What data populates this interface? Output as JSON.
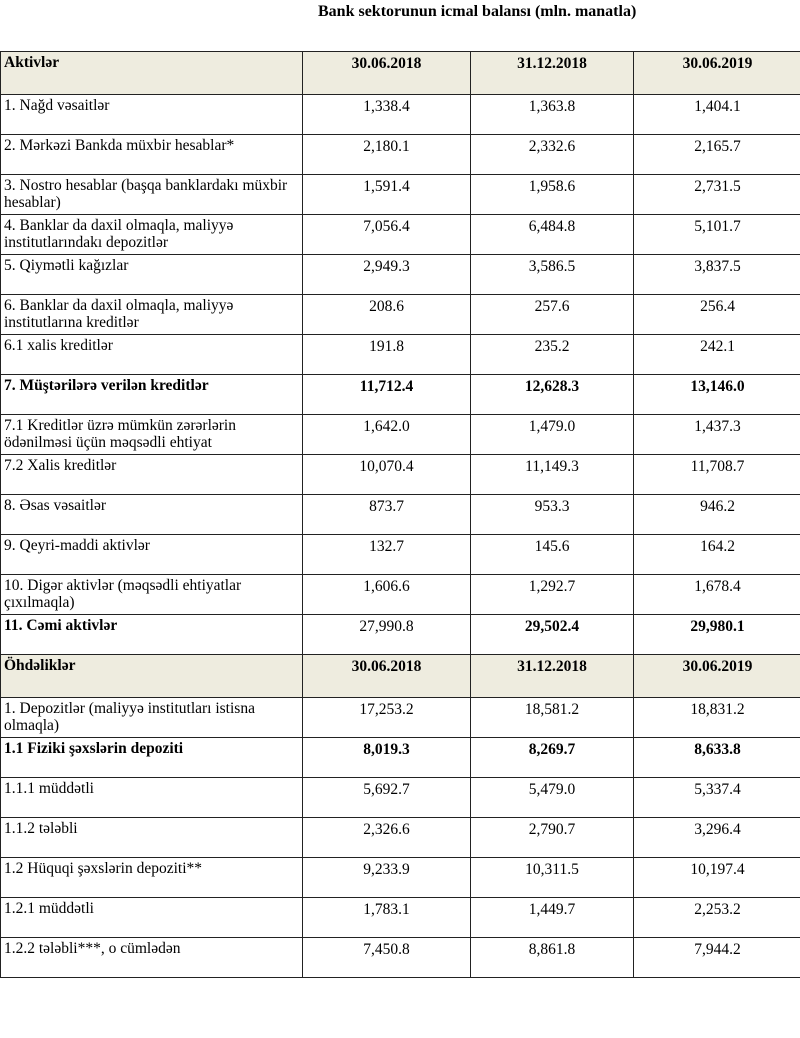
{
  "title": "Bank sektorunun icmal balansı  (mln. manatla)",
  "rows": [
    {
      "type": "head",
      "cells": [
        "Aktivlər",
        "30.06.2018",
        "31.12.2018",
        "30.06.2019"
      ]
    },
    {
      "cells": [
        "1. Nağd vəsaitlər",
        "1,338.4",
        "1,363.8",
        "1,404.1"
      ]
    },
    {
      "cells": [
        "2. Mərkəzi Bankda müxbir hesablar*",
        "2,180.1",
        "2,332.6",
        "2,165.7"
      ]
    },
    {
      "cells": [
        "3. Nostro hesablar (başqa banklardakı müxbir hesablar)",
        "1,591.4",
        "1,958.6",
        "2,731.5"
      ]
    },
    {
      "cells": [
        "4. Banklar da daxil olmaqla, maliyyə institutlarındakı depozitlər",
        "7,056.4",
        "6,484.8",
        "5,101.7"
      ]
    },
    {
      "cells": [
        "5. Qiymətli kağızlar",
        "2,949.3",
        "3,586.5",
        "3,837.5"
      ]
    },
    {
      "cells": [
        "6. Banklar da daxil olmaqla, maliyyə institutlarına kreditlər",
        "208.6",
        "257.6",
        "256.4"
      ]
    },
    {
      "cells": [
        "6.1 xalis kreditlər",
        "191.8",
        "235.2",
        "242.1"
      ]
    },
    {
      "cells": [
        "7. Müştərilərə verilən kreditlər",
        "11,712.4",
        "12,628.3",
        "13,146.0"
      ],
      "bold": [
        true,
        true,
        true,
        true
      ]
    },
    {
      "cells": [
        "7.1 Kreditlər üzrə mümkün zərərlərin ödənilməsi üçün məqsədli ehtiyat",
        "1,642.0",
        "1,479.0",
        "1,437.3"
      ]
    },
    {
      "cells": [
        "7.2 Xalis kreditlər",
        "10,070.4",
        "11,149.3",
        "11,708.7"
      ]
    },
    {
      "cells": [
        "8. Əsas vəsaitlər",
        "873.7",
        "953.3",
        "946.2"
      ]
    },
    {
      "cells": [
        "9. Qeyri-maddi aktivlər",
        "132.7",
        "145.6",
        "164.2"
      ]
    },
    {
      "cells": [
        "10. Digər aktivlər (məqsədli ehtiyatlar çıxılmaqla)",
        "1,606.6",
        "1,292.7",
        "1,678.4"
      ]
    },
    {
      "cells": [
        "11. Cəmi aktivlər",
        "27,990.8",
        "29,502.4",
        "29,980.1"
      ],
      "bold": [
        true,
        false,
        true,
        true
      ]
    },
    {
      "type": "head",
      "cells": [
        "Öhdəliklər",
        "30.06.2018",
        "31.12.2018",
        "30.06.2019"
      ]
    },
    {
      "cells": [
        "1. Depozitlər (maliyyə institutları istisna olmaqla)",
        "17,253.2",
        "18,581.2",
        "18,831.2"
      ]
    },
    {
      "cells": [
        "1.1 Fiziki şəxslərin depoziti",
        "8,019.3",
        "8,269.7",
        "8,633.8"
      ],
      "bold": [
        true,
        true,
        true,
        true
      ]
    },
    {
      "cells": [
        "1.1.1 müddətli",
        "5,692.7",
        "5,479.0",
        "5,337.4"
      ]
    },
    {
      "cells": [
        "1.1.2 tələbli",
        "2,326.6",
        "2,790.7",
        "3,296.4"
      ]
    },
    {
      "cells": [
        "1.2 Hüquqi şəxslərin depoziti**",
        "9,233.9",
        "10,311.5",
        "10,197.4"
      ]
    },
    {
      "cells": [
        "1.2.1 müddətli",
        "1,783.1",
        "1,449.7",
        "2,253.2"
      ]
    },
    {
      "cells": [
        "1.2.2 tələbli***, o cümlədən",
        "7,450.8",
        "8,861.8",
        "7,944.2"
      ]
    }
  ]
}
